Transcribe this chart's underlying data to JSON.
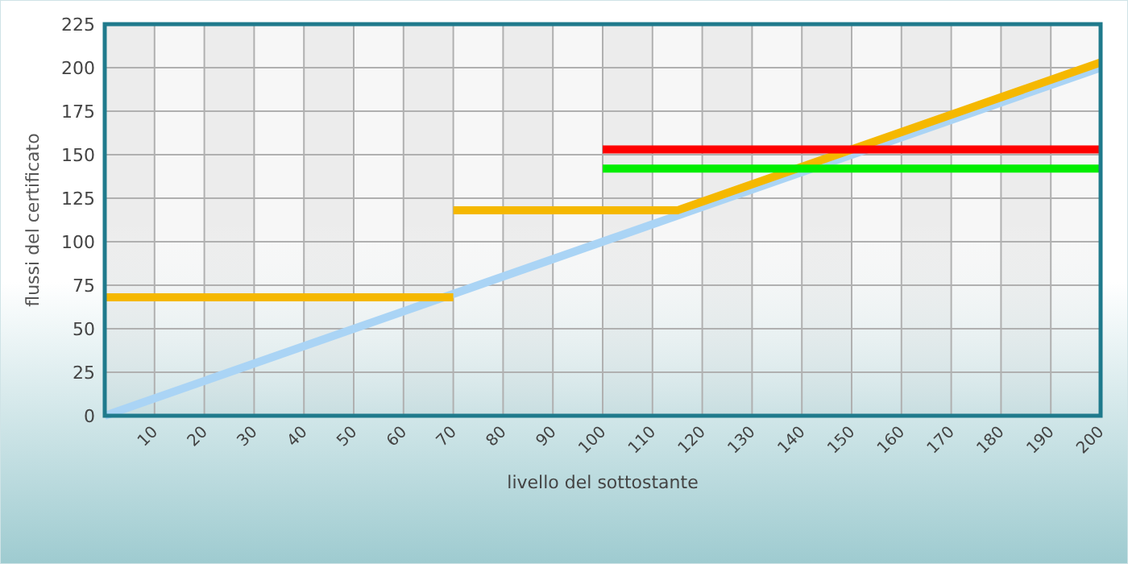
{
  "chart_data": {
    "type": "line",
    "xlabel": "livello del sottostante",
    "ylabel": "flussi del certificato",
    "xlim": [
      0,
      200
    ],
    "xticks": [
      10,
      20,
      30,
      40,
      50,
      60,
      70,
      80,
      90,
      100,
      110,
      120,
      130,
      140,
      150,
      160,
      170,
      180,
      190,
      200
    ],
    "ylim": [
      0,
      225
    ],
    "yticks": [
      0,
      25,
      50,
      75,
      100,
      125,
      150,
      175,
      200,
      225
    ],
    "grid": true,
    "series": [
      {
        "color": "#aad4f5",
        "x": [
          0,
          200
        ],
        "values": [
          0,
          200
        ]
      },
      {
        "color": "#f5b800",
        "x": [
          0,
          70
        ],
        "values": [
          68,
          68
        ]
      },
      {
        "color": "#f5b800",
        "x": [
          70,
          115,
          200
        ],
        "values": [
          118,
          118,
          203
        ]
      },
      {
        "color": "#ff0000",
        "x": [
          100,
          200
        ],
        "values": [
          153,
          153
        ]
      },
      {
        "color": "#00ee00",
        "x": [
          100,
          200
        ],
        "values": [
          142,
          142
        ]
      }
    ]
  }
}
